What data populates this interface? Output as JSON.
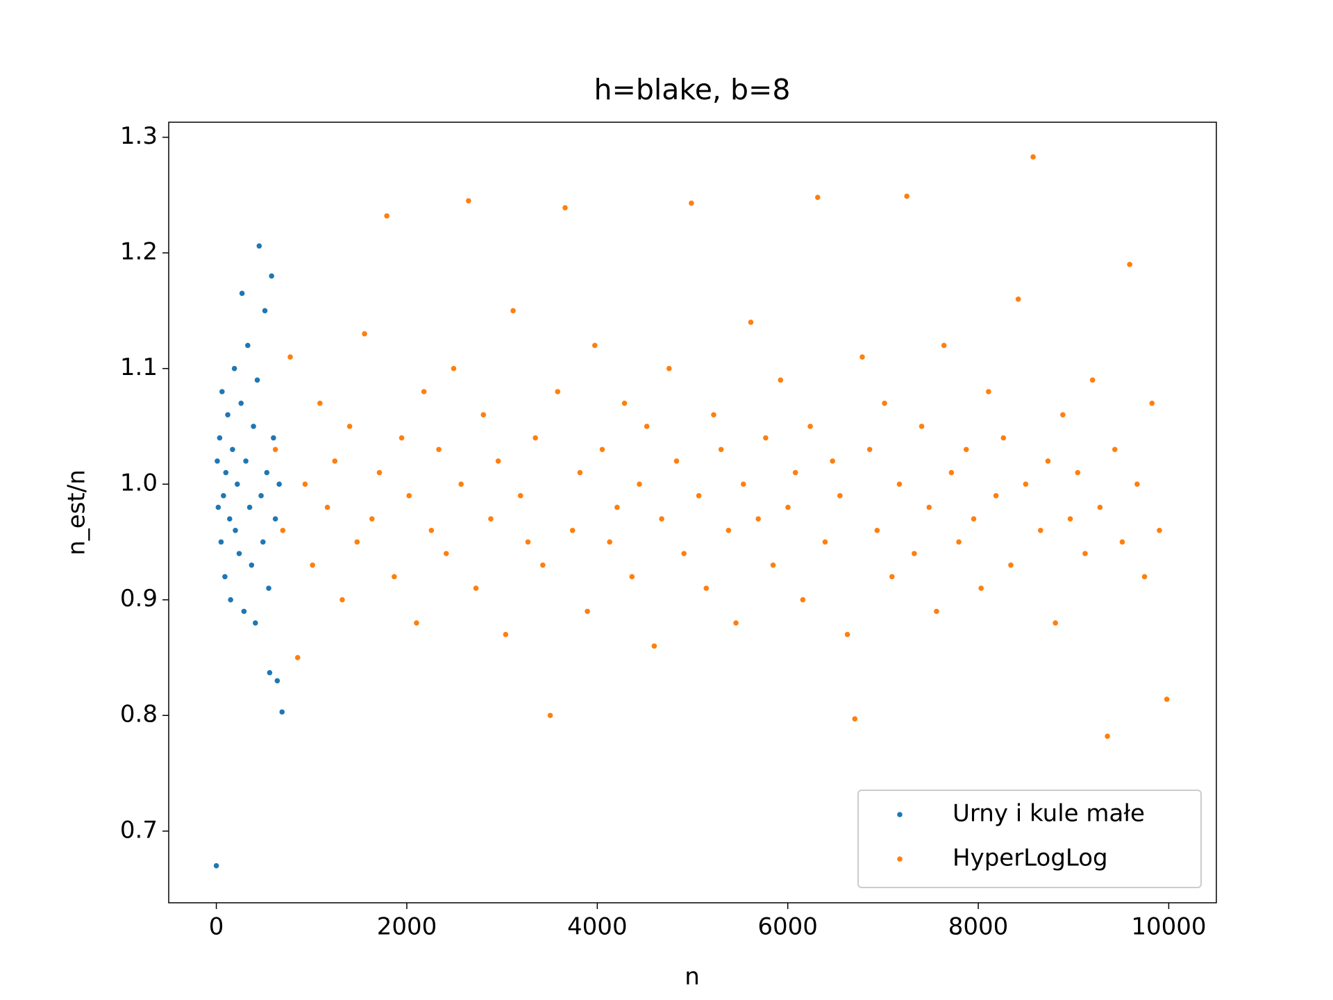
{
  "chart_data": {
    "type": "scatter",
    "title": "h=blake, b=8",
    "x_label": "n",
    "y_label": "n_est/n",
    "xlim": [
      -500,
      10500
    ],
    "ylim": [
      0.638,
      1.313
    ],
    "xticks": [
      0,
      2000,
      4000,
      6000,
      8000,
      10000
    ],
    "yticks": [
      0.7,
      0.8,
      0.9,
      {
        "value": 1,
        "label": "1.0"
      },
      1.1,
      1.2,
      1.3
    ],
    "legend": "lower right",
    "series": [
      {
        "name": "Urny i kule małe",
        "color": "#1f77b4",
        "x": [
          0,
          10,
          20,
          35,
          50,
          60,
          75,
          90,
          100,
          120,
          140,
          150,
          170,
          190,
          200,
          220,
          240,
          260,
          270,
          290,
          310,
          330,
          350,
          370,
          390,
          410,
          430,
          450,
          470,
          490,
          510,
          530,
          550,
          560,
          580,
          600,
          620,
          640,
          660,
          690
        ],
        "values": [
          0.67,
          1.02,
          0.98,
          1.04,
          0.95,
          1.08,
          0.99,
          0.92,
          1.01,
          1.06,
          0.97,
          0.9,
          1.03,
          1.1,
          0.96,
          1.0,
          0.94,
          1.07,
          1.165,
          0.89,
          1.02,
          1.12,
          0.98,
          0.93,
          1.05,
          0.88,
          1.09,
          1.206,
          0.99,
          0.95,
          1.15,
          1.01,
          0.91,
          0.837,
          1.18,
          1.04,
          0.97,
          0.83,
          1.0,
          0.803
        ]
      },
      {
        "name": "HyperLogLog",
        "color": "#ff7f0e",
        "x": [
          620,
          698,
          776,
          854,
          932,
          1010,
          1088,
          1166,
          1244,
          1322,
          1400,
          1478,
          1556,
          1634,
          1712,
          1790,
          1868,
          1946,
          2024,
          2102,
          2180,
          2258,
          2336,
          2414,
          2492,
          2570,
          2648,
          2726,
          2804,
          2882,
          2960,
          3038,
          3116,
          3194,
          3272,
          3350,
          3428,
          3506,
          3584,
          3662,
          3740,
          3818,
          3896,
          3974,
          4052,
          4130,
          4208,
          4286,
          4364,
          4442,
          4520,
          4598,
          4676,
          4754,
          4832,
          4910,
          4988,
          5066,
          5144,
          5222,
          5300,
          5378,
          5456,
          5534,
          5612,
          5690,
          5768,
          5846,
          5924,
          6002,
          6080,
          6158,
          6236,
          6314,
          6392,
          6470,
          6548,
          6626,
          6704,
          6782,
          6860,
          6938,
          7016,
          7094,
          7172,
          7250,
          7328,
          7406,
          7484,
          7562,
          7640,
          7718,
          7796,
          7874,
          7952,
          8030,
          8108,
          8186,
          8264,
          8342,
          8420,
          8498,
          8576,
          8654,
          8732,
          8810,
          8888,
          8966,
          9044,
          9122,
          9200,
          9278,
          9356,
          9434,
          9512,
          9590,
          9668,
          9746,
          9824,
          9902,
          9980
        ],
        "values": [
          1.03,
          0.96,
          1.11,
          0.85,
          1.0,
          0.93,
          1.07,
          0.98,
          1.02,
          0.9,
          1.05,
          0.95,
          1.13,
          0.97,
          1.01,
          1.232,
          0.92,
          1.04,
          0.99,
          0.88,
          1.08,
          0.96,
          1.03,
          0.94,
          1.1,
          1.0,
          1.245,
          0.91,
          1.06,
          0.97,
          1.02,
          0.87,
          1.15,
          0.99,
          0.95,
          1.04,
          0.93,
          0.8,
          1.08,
          1.239,
          0.96,
          1.01,
          0.89,
          1.12,
          1.03,
          0.95,
          0.98,
          1.07,
          0.92,
          1.0,
          1.05,
          0.86,
          0.97,
          1.1,
          1.02,
          0.94,
          1.243,
          0.99,
          0.91,
          1.06,
          1.03,
          0.96,
          0.88,
          1.0,
          1.14,
          0.97,
          1.04,
          0.93,
          1.09,
          0.98,
          1.01,
          0.9,
          1.05,
          1.248,
          0.95,
          1.02,
          0.99,
          0.87,
          0.797,
          1.11,
          1.03,
          0.96,
          1.07,
          0.92,
          1.0,
          1.249,
          0.94,
          1.05,
          0.98,
          0.89,
          1.12,
          1.01,
          0.95,
          1.03,
          0.97,
          0.91,
          1.08,
          0.99,
          1.04,
          0.93,
          1.16,
          1.0,
          1.283,
          0.96,
          1.02,
          0.88,
          1.06,
          0.97,
          1.01,
          0.94,
          1.09,
          0.98,
          0.782,
          1.03,
          0.95,
          1.19,
          1.0,
          0.92,
          1.07,
          0.96,
          0.814
        ]
      }
    ]
  }
}
